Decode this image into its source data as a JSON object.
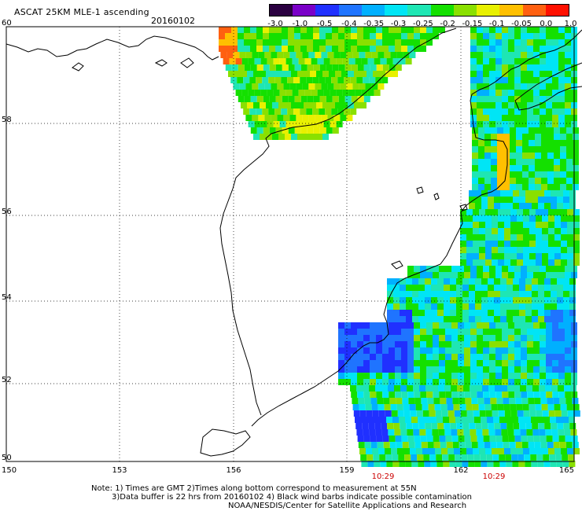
{
  "header": {
    "title": "ASCAT 25KM MLE-1 ascending",
    "date": "20160102"
  },
  "colorbar": {
    "labels": [
      "-3.0",
      "-1.0",
      "-0.5",
      "-0.4",
      "-0.35",
      "-0.3",
      "-0.25",
      "-0.2",
      "-0.15",
      "-0.1",
      "-0.05",
      "0.0",
      "1.0"
    ],
    "colors": [
      "#2a0040",
      "#7a00c8",
      "#2030ff",
      "#1f74ff",
      "#00b0ff",
      "#00e5f5",
      "#1ee6b4",
      "#14e000",
      "#8ae000",
      "#e8f000",
      "#ffc000",
      "#ff6010",
      "#ff1000"
    ]
  },
  "map": {
    "lat_labels": [
      "60",
      "58",
      "56",
      "54",
      "52",
      "50"
    ],
    "lon_labels": [
      "150",
      "153",
      "156",
      "159",
      "162",
      "165"
    ],
    "time_labels": [
      "10:29",
      "10:29"
    ]
  },
  "notes": {
    "line1": "Note: 1) Times are GMT 2)Times along bottom correspond to measurement at 55N",
    "line2": "3)Data buffer is 22 hrs from 20160102 4) Black wind barbs indicate possible contamination",
    "line3": "NOAA/NESDIS/Center for Satellite Applications and Research"
  }
}
